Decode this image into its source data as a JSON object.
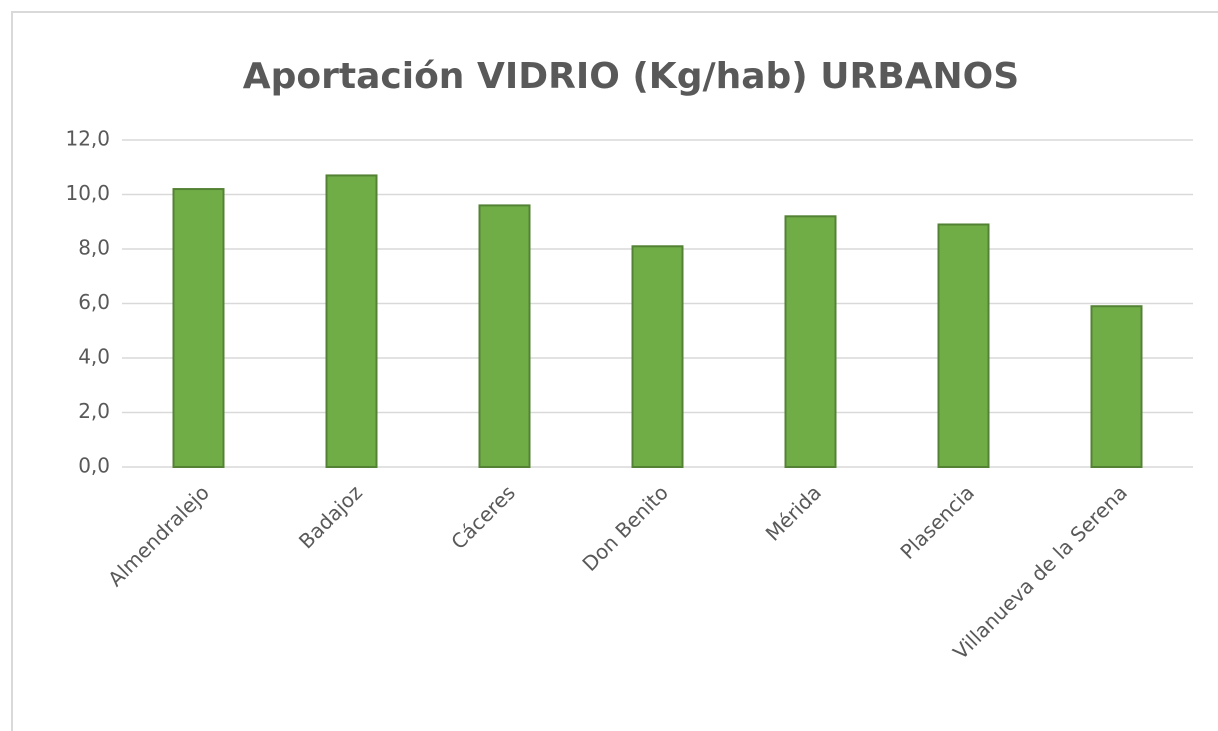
{
  "chart_data": {
    "type": "bar",
    "title": "Aportación VIDRIO (Kg/hab) URBANOS",
    "categories": [
      "Almendralejo",
      "Badajoz",
      "Cáceres",
      "Don Benito",
      "Mérida",
      "Plasencia",
      "Villanueva de la Serena"
    ],
    "values": [
      10.2,
      10.7,
      9.6,
      8.1,
      9.2,
      8.9,
      5.9
    ],
    "color": "#70ad47",
    "ylim": [
      0,
      12
    ],
    "yticks": [
      {
        "value": 0,
        "label": "0,0"
      },
      {
        "value": 2,
        "label": "2,0"
      },
      {
        "value": 4,
        "label": "4,0"
      },
      {
        "value": 6,
        "label": "6,0"
      },
      {
        "value": 8,
        "label": "8,0"
      },
      {
        "value": 10,
        "label": "10,0"
      },
      {
        "value": 12,
        "label": "12,0"
      }
    ],
    "grid": true
  }
}
